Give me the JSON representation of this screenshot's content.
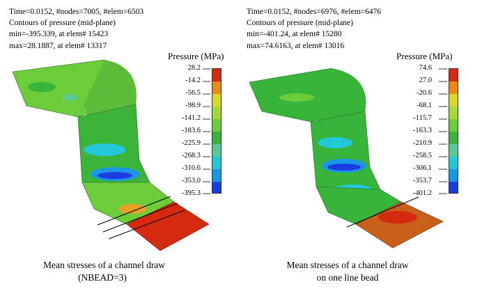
{
  "left": {
    "header": {
      "line1": "Time=0.0152, #nodes=7005, #elem=6503",
      "line2": "Contours of pressure (mid-plane)",
      "line3": "min=-395.339, at elem# 15423",
      "line4": "max=28.1887, at elem# 13317"
    },
    "legend": {
      "title": "Pressure (MPa)",
      "ticks": [
        "28.2",
        "-14.2",
        "-56.5",
        "-98.9",
        "-141.2",
        "-183.6",
        "-225.9",
        "-268.3",
        "-310.6",
        "-353.0",
        "-395.3"
      ]
    },
    "caption": {
      "line1": "Mean stresses of a channel draw",
      "line2": "(NBEAD=3)"
    }
  },
  "right": {
    "header": {
      "line1": "Time=0.0152, #nodes=6976, #elem=6476",
      "line2": "Contours of pressure (mid-plane)",
      "line3": "min=-401.24, at elem# 15280",
      "line4": "max=74.6163, at elem# 13016"
    },
    "legend": {
      "title": "Pressure (MPa)",
      "ticks": [
        "74.6",
        "27.0",
        "-20.6",
        "-68.1",
        "-115.7",
        "-163.3",
        "-210.9",
        "-258.5",
        "-306.1",
        "-353.7",
        "-401.2"
      ]
    },
    "caption": {
      "line1": "Mean stresses of a channel draw",
      "line2": "on one line bead"
    }
  },
  "colors": {
    "red": "#d42a10",
    "orange": "#e88a1a",
    "yellow": "#d8d82a",
    "yellow_green": "#a8d83a",
    "light_green": "#6ccc3a",
    "green": "#38b43a",
    "teal": "#5cc89a",
    "cyan": "#22c8d8",
    "sky": "#1a96e4",
    "blue": "#1a3ce0",
    "navy": "#12169a",
    "flat_orange": "#c8601a"
  }
}
